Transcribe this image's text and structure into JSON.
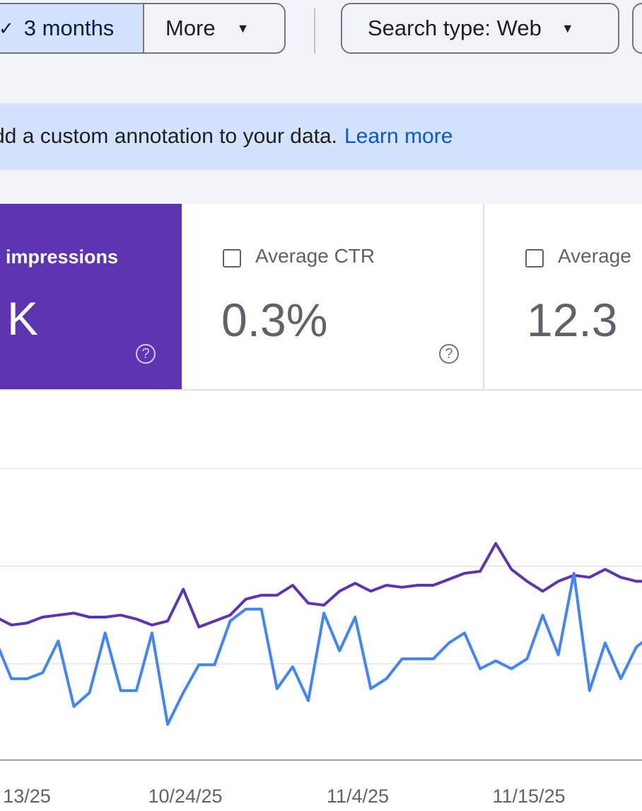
{
  "filters": {
    "selected_range": "3 months",
    "selected_check_icon": "check-icon",
    "more_label": "More",
    "search_type_label": "Search type: Web"
  },
  "banner": {
    "text": "dd a custom annotation to your data.",
    "link": "Learn more"
  },
  "metrics": {
    "impressions": {
      "label": "impressions",
      "value": "K",
      "color": "#5e35b1"
    },
    "ctr": {
      "label": "Average CTR",
      "value": "0.3%",
      "checked": false
    },
    "position": {
      "label": "Average ",
      "value": "12.3",
      "checked": false
    }
  },
  "colors": {
    "clicks": "#4285f4",
    "impressions": "#5e35b1"
  },
  "chart_data": {
    "type": "line",
    "x_tick_labels": [
      "13/25",
      "10/24/25",
      "11/4/25",
      "11/15/25"
    ],
    "series": [
      {
        "values": [
          63,
          59,
          60,
          63,
          64,
          65,
          63,
          63,
          64,
          62,
          59,
          61,
          77,
          58,
          61,
          64,
          72,
          74,
          74,
          79,
          70,
          69,
          76,
          80,
          76,
          79,
          78,
          79,
          79,
          82,
          85,
          86,
          100,
          87,
          81,
          76,
          81,
          84,
          83,
          87,
          83,
          81,
          81
        ]
      },
      {
        "values": [
          51,
          32,
          32,
          35,
          51,
          18,
          25,
          55,
          26,
          26,
          55,
          9,
          25,
          39,
          39,
          61,
          67,
          67,
          27,
          38,
          21,
          65,
          46,
          63,
          27,
          32,
          42,
          42,
          42,
          50,
          55,
          37,
          41,
          37,
          42,
          64,
          44,
          85,
          26,
          50,
          32,
          48,
          54
        ]
      }
    ]
  }
}
